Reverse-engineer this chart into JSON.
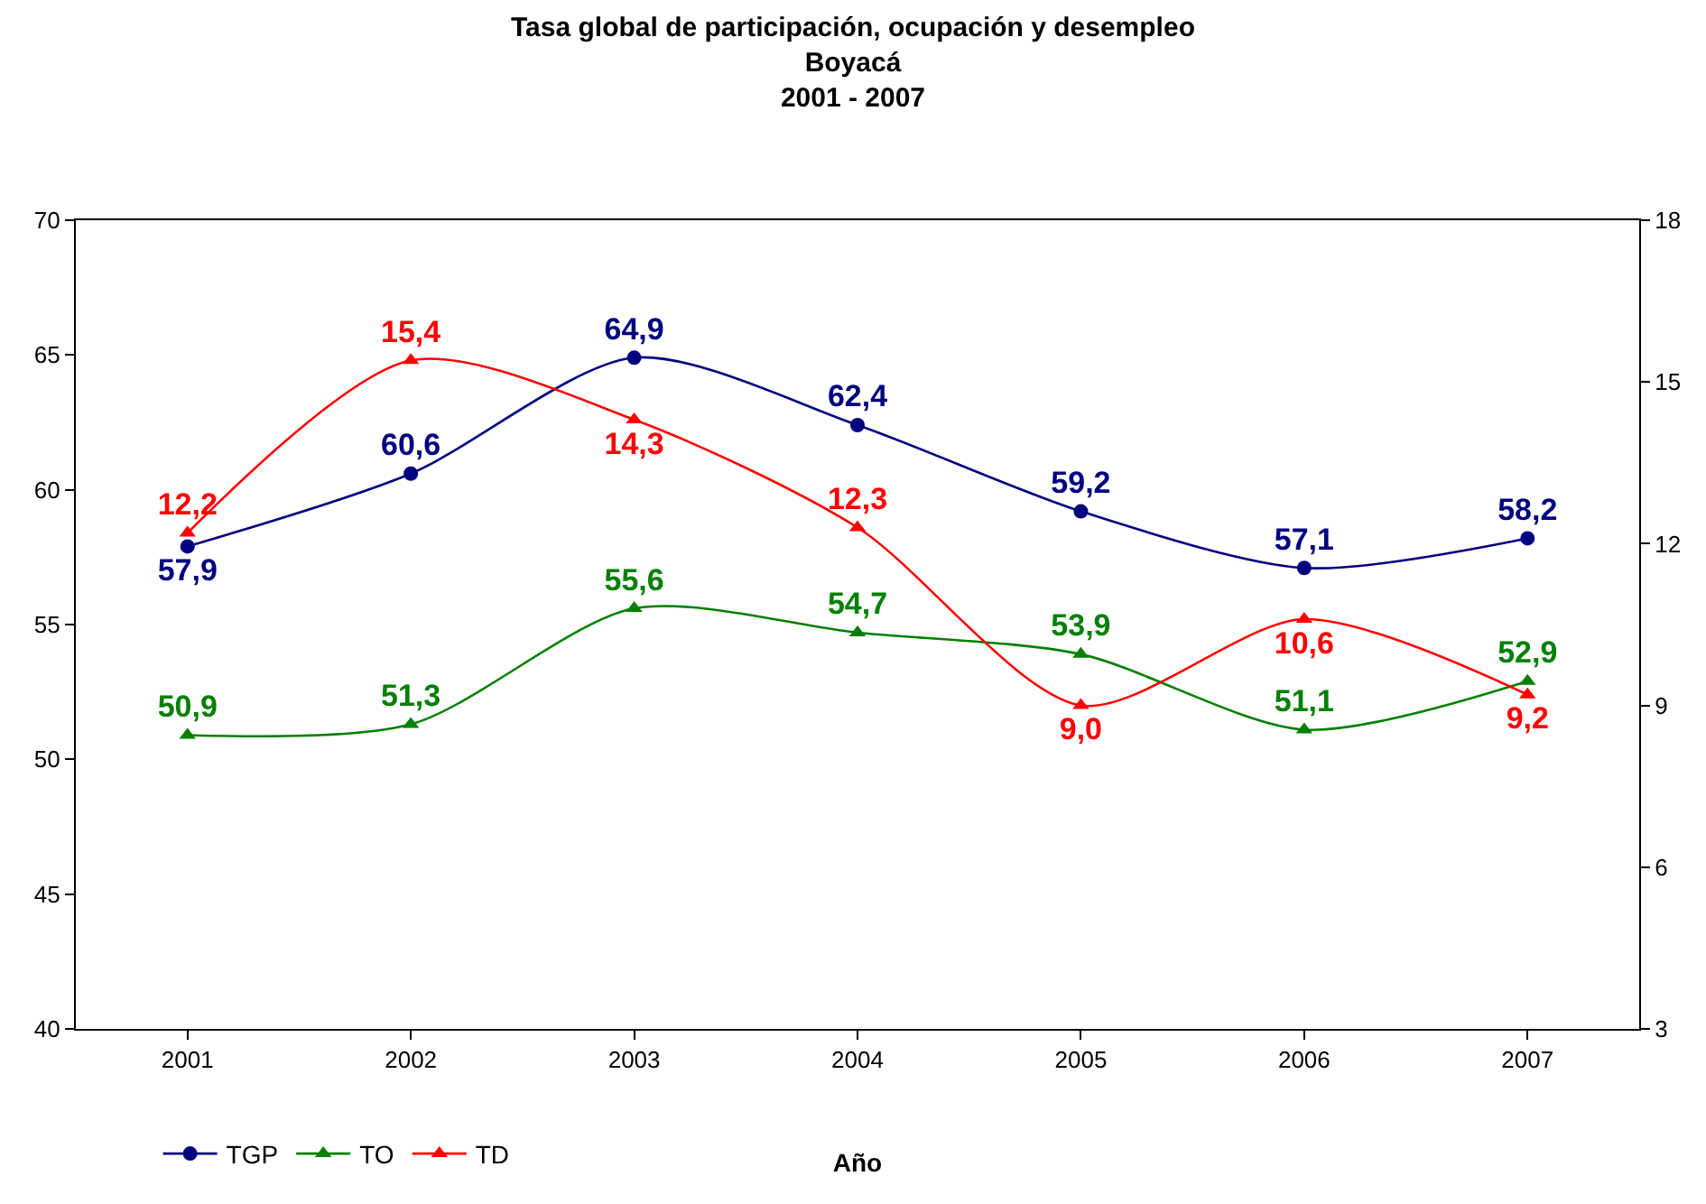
{
  "chart_data": {
    "type": "line",
    "title": "Tasa global de participación, ocupación y desempleo\nBoyacá\n2001 - 2007",
    "xlabel": "Año",
    "categories": [
      "2001",
      "2002",
      "2003",
      "2004",
      "2005",
      "2006",
      "2007"
    ],
    "series": [
      {
        "name": "TGP",
        "color": "#000080",
        "marker": "circle",
        "values": [
          57.9,
          60.6,
          64.9,
          62.4,
          59.2,
          57.1,
          58.2
        ],
        "value_labels": [
          "57,9",
          "60,6",
          "64,9",
          "62,4",
          "59,2",
          "57,1",
          "58,2"
        ]
      },
      {
        "name": "TO",
        "color": "#008000",
        "marker": "triangle",
        "values": [
          50.9,
          51.3,
          55.6,
          54.7,
          53.9,
          51.1,
          52.9
        ],
        "value_labels": [
          "50,9",
          "51,3",
          "55,6",
          "54,7",
          "53,9",
          "51,1",
          "52,9"
        ]
      },
      {
        "name": "TD",
        "color": "#ff0000",
        "marker": "triangle",
        "axis": "y2",
        "values": [
          12.2,
          15.4,
          14.3,
          12.3,
          9.0,
          10.6,
          9.2
        ],
        "value_labels": [
          "12,2",
          "15,4",
          "14,3",
          "12,3",
          "9,0",
          "10,6",
          "9,2"
        ]
      }
    ],
    "ylim": [
      40,
      70
    ],
    "yticks": [
      40,
      45,
      50,
      55,
      60,
      65,
      70
    ],
    "y2lim": [
      3,
      18
    ],
    "y2ticks": [
      3,
      6,
      9,
      12,
      15,
      18
    ],
    "legend": "bottom left",
    "line_style": "solid"
  }
}
